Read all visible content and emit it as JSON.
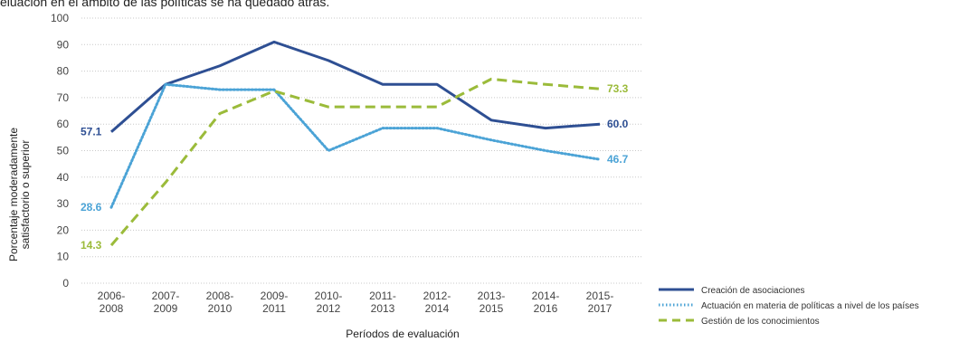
{
  "header": {
    "top_text": "eluación en el ámbito de las políticas se ha quedado atrás."
  },
  "chart_data": {
    "type": "line",
    "categories": [
      "2006-\n2008",
      "2007-\n2009",
      "2008-\n2010",
      "2009-\n2011",
      "2010-\n2012",
      "2011-\n2013",
      "2012-\n2014",
      "2013-\n2015",
      "2014-\n2016",
      "2015-\n2017"
    ],
    "xlabel": "Períodos de evaluación",
    "ylabel": [
      "Porcentaje moderadamente",
      "satisfactorio o superior"
    ],
    "ylim": [
      0,
      100
    ],
    "yticks": [
      0,
      10,
      20,
      30,
      40,
      50,
      60,
      70,
      80,
      90,
      100
    ],
    "grid": "horizontal dotted",
    "legend_position": "bottom-right",
    "series": [
      {
        "name": "Creación de asociaciones",
        "values": [
          57.1,
          75,
          82,
          91,
          84,
          75,
          75,
          61.5,
          58.5,
          60.0
        ],
        "color": "#2e4f93",
        "style": "solid",
        "start_label": "57.1",
        "end_label": "60.0"
      },
      {
        "name": "Actuación en materia de políticas a nivel de los países",
        "values": [
          28.6,
          75,
          73,
          73,
          50,
          58.5,
          58.5,
          54,
          50,
          46.7
        ],
        "color": "#4ba3d6",
        "style": "dotted",
        "start_label": "28.6",
        "end_label": "46.7"
      },
      {
        "name": "Gestión de los conocimientos",
        "values": [
          14.3,
          38,
          64,
          72.5,
          66.5,
          66.5,
          66.5,
          77,
          75,
          73.3
        ],
        "color": "#9bbb3a",
        "style": "dashed",
        "start_label": "14.3",
        "end_label": "73.3"
      }
    ]
  }
}
